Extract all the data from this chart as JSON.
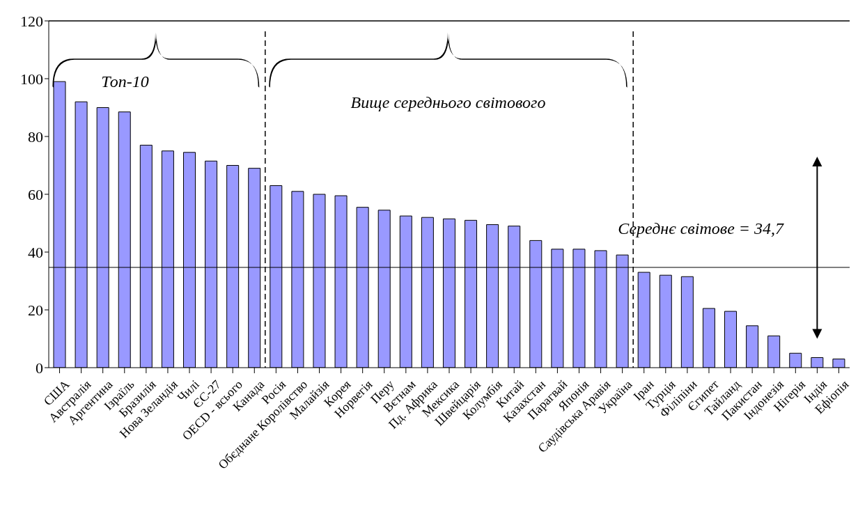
{
  "chart_data": {
    "type": "bar",
    "categories": [
      "США",
      "Австралія",
      "Аргентина",
      "Ізраїль",
      "Бразилія",
      "Нова Зеландія",
      "Чилі",
      "ЄС-27",
      "OECD - всього",
      "Канада",
      "Росія",
      "Обєднане Королівство",
      "Малайзія",
      "Корея",
      "Норвегія",
      "Перу",
      "Вєтнам",
      "Пд. Африка",
      "Мексика",
      "Швейцарія",
      "Колумбія",
      "Китай",
      "Казахстан",
      "Парагвай",
      "Японія",
      "Саудівська Аравія",
      "Україна",
      "Іран",
      "Турція",
      "Філіпіни",
      "Єгипет",
      "Тайланд",
      "Пакистан",
      "Індонезія",
      "Нігерія",
      "Індія",
      "Ефіопія"
    ],
    "values": [
      99,
      92,
      90,
      88.5,
      77,
      75,
      74.5,
      71.5,
      70,
      69,
      63,
      61,
      60,
      59.5,
      55.5,
      54.5,
      52.5,
      52,
      51.5,
      51,
      49.5,
      49,
      44,
      41,
      41,
      40.5,
      39,
      33,
      32,
      31.5,
      20.5,
      19.5,
      14.5,
      11,
      5,
      3.5,
      3
    ],
    "color": "#9999ff",
    "ylim": [
      0,
      120
    ],
    "yticks": [
      0,
      20,
      40,
      60,
      80,
      100,
      120
    ],
    "ref_lines": [
      {
        "axis": "y",
        "value": 34.7,
        "label": "Середнє світове = 34,7"
      }
    ],
    "annotations": [
      "Топ-10",
      "Вище середнього світового"
    ]
  }
}
